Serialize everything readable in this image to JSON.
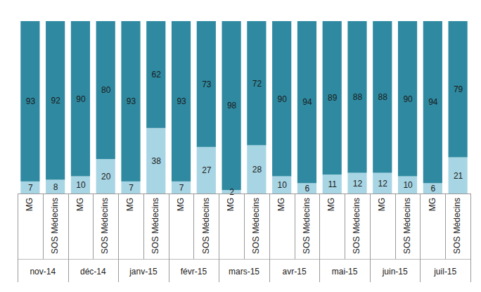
{
  "chart_data": {
    "type": "bar",
    "categories": [
      "MG",
      "SOS Médecins",
      "MG",
      "SOS Médecins",
      "MG",
      "SOS Médecins",
      "MG",
      "SOS Médecins",
      "MG",
      "SOS Médecins",
      "MG",
      "SOS Médecins",
      "MG",
      "SOS Médecins",
      "MG",
      "SOS Médecins",
      "MG",
      "SOS Médecins"
    ],
    "category_groups": [
      "nov-14",
      "déc-14",
      "janv-15",
      "févr-15",
      "mars-15",
      "avr-15",
      "mai-15",
      "juin-15",
      "juil-15"
    ],
    "series": [
      {
        "color": "#a8d5e4",
        "values": [
          7,
          8,
          10,
          20,
          7,
          38,
          7,
          27,
          2,
          28,
          10,
          6,
          11,
          12,
          12,
          10,
          6,
          21
        ]
      },
      {
        "color": "#2f8aa1",
        "values": [
          93,
          92,
          90,
          80,
          93,
          62,
          93,
          73,
          98,
          72,
          90,
          94,
          89,
          88,
          88,
          90,
          94,
          79
        ]
      }
    ],
    "ylim": [
      0,
      100
    ],
    "stacked": true,
    "data_labels": true,
    "tick_labels": "x"
  }
}
